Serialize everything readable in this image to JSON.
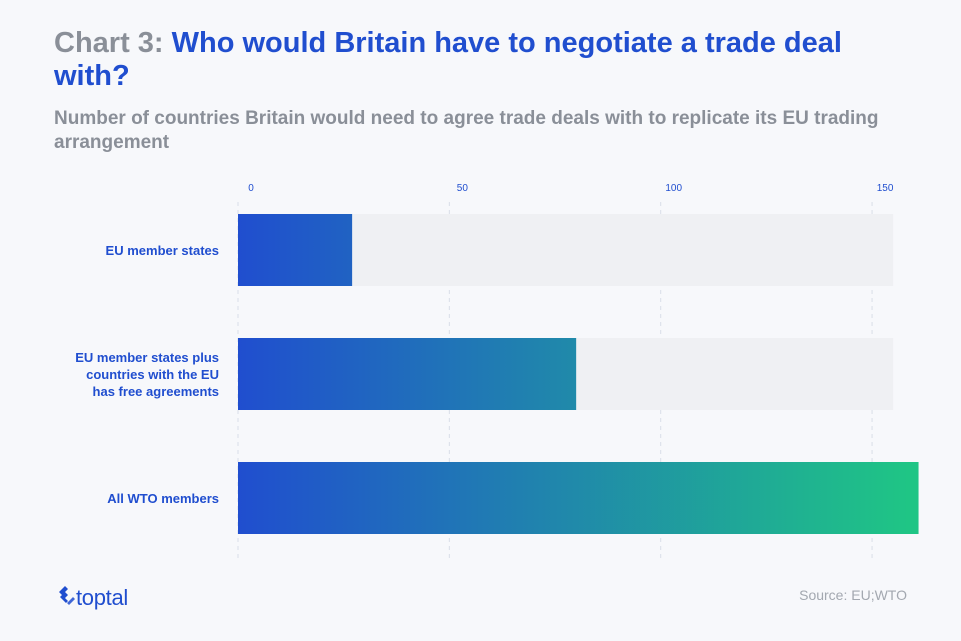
{
  "header": {
    "title_prefix": "Chart 3:",
    "title_main": "Who would Britain have to negotiate a trade deal with?",
    "subtitle": "Number of countries Britain would need to agree trade deals with to replicate its EU trading arrangement"
  },
  "chart_data": {
    "type": "bar",
    "orientation": "horizontal",
    "categories": [
      "EU member states",
      "EU member states plus countries with the EU has free agreements",
      "All WTO members"
    ],
    "category_label_lines": [
      [
        "EU member states"
      ],
      [
        "EU member states plus",
        "countries with the EU",
        "has free agreements"
      ],
      [
        "All WTO members"
      ]
    ],
    "values": [
      27,
      80,
      161
    ],
    "xlim": [
      0,
      160
    ],
    "background_track_max": 155,
    "ticks": [
      0,
      50,
      100,
      150
    ],
    "grid": true,
    "axis_position": "top",
    "colors": {
      "bar_start": "#204ecf",
      "bar_end": "#1fc585",
      "track": "#eff0f3",
      "grid": "#d9dee8",
      "label": "#204ecf"
    }
  },
  "footer": {
    "logo_text": "toptal",
    "source": "Source: EU;WTO"
  }
}
